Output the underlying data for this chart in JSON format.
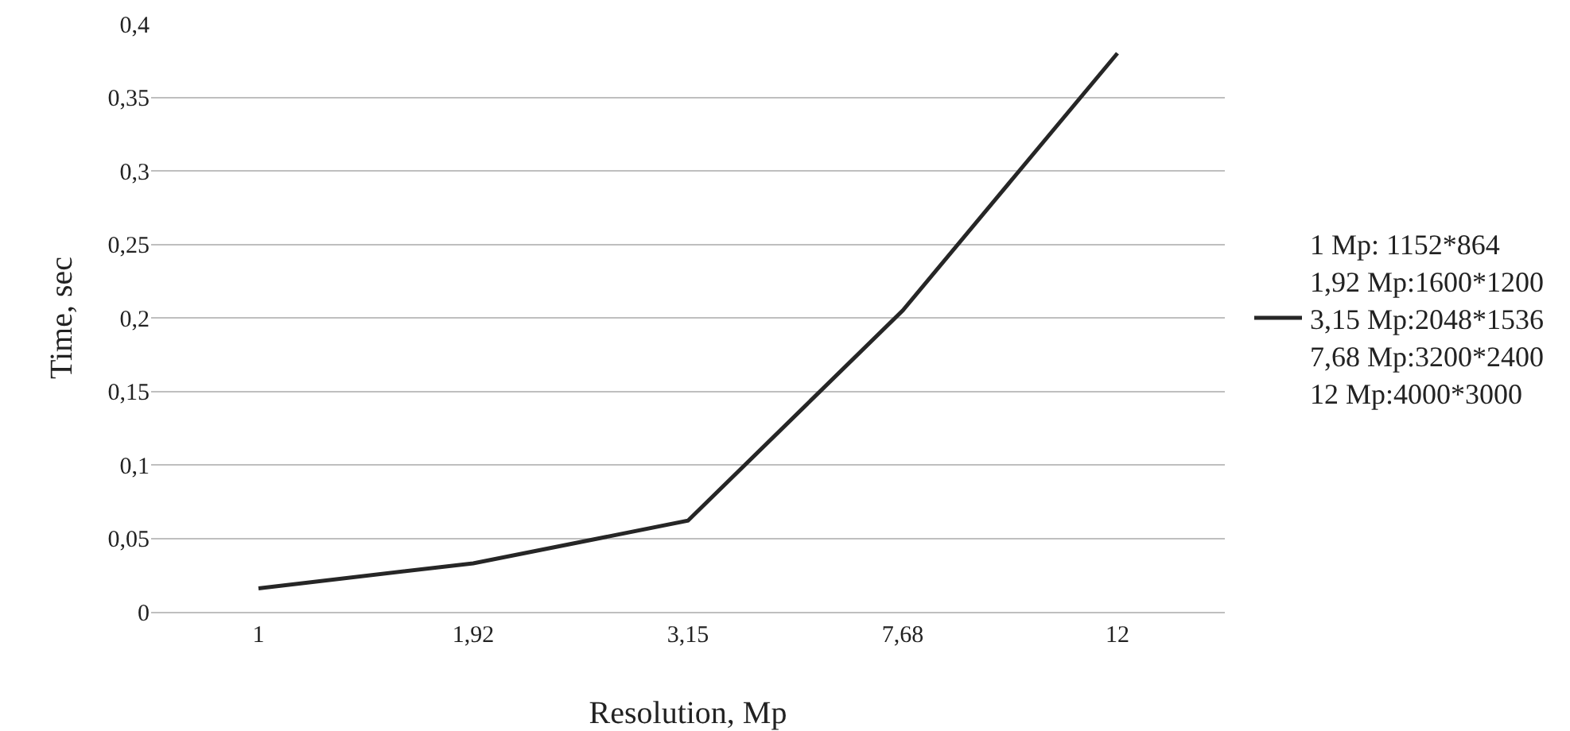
{
  "chart_data": {
    "type": "line",
    "xlabel": "Resolution, Mp",
    "ylabel": "Time, sec",
    "categories": [
      "1",
      "1,92",
      "3,15",
      "7,68",
      "12"
    ],
    "series": [
      {
        "name": "1 Mp: 1152*864\n1,92 Mp:1600*1200\n3,15 Mp:2048*1536\n7,68 Mp:3200*2400\n12 Mp:4000*3000",
        "color": "#262626",
        "values": [
          0.016,
          0.033,
          0.062,
          0.205,
          0.38
        ]
      }
    ],
    "ylim": [
      0,
      0.4
    ],
    "yticks": [
      0,
      {
        "value": 0.05,
        "label": "0,05"
      },
      {
        "value": 0.1,
        "label": "0,1"
      },
      {
        "value": 0.15,
        "label": "0,15"
      },
      {
        "value": 0.2,
        "label": "0,2"
      },
      {
        "value": 0.25,
        "label": "0,25"
      },
      {
        "value": 0.3,
        "label": "0,3"
      },
      {
        "value": 0.35,
        "label": "0,35"
      },
      {
        "value": 0.4,
        "label": "0,4"
      }
    ],
    "grid": "y",
    "legend": "right",
    "marker": "none",
    "line_style": "solid"
  }
}
